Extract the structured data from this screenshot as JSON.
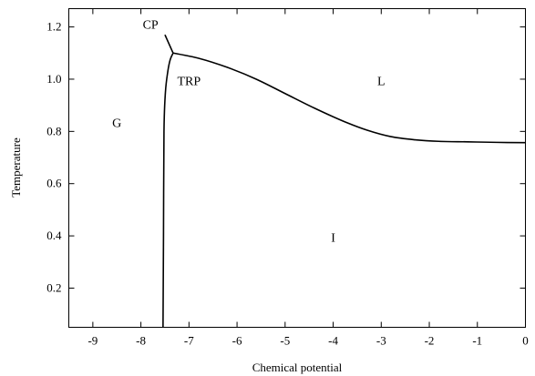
{
  "chart_data": {
    "type": "line",
    "xlabel": "Chemical potential",
    "ylabel": "Temperature",
    "xlim": [
      -9.5,
      0
    ],
    "ylim": [
      0.05,
      1.27
    ],
    "x_ticks": [
      -9,
      -8,
      -7,
      -6,
      -5,
      -4,
      -3,
      -2,
      -1,
      0
    ],
    "y_ticks": [
      0.2,
      0.4,
      0.6,
      0.8,
      1.0,
      1.2
    ],
    "y_tick_labels": [
      "0.2",
      "0.4",
      "0.6",
      "0.8",
      "1.0",
      "1.2"
    ],
    "grid": false,
    "series": [
      {
        "x": [
          -7.33,
          -6.8,
          -6.2,
          -5.6,
          -5.0,
          -4.4,
          -3.8,
          -3.3,
          -2.8,
          -2.3,
          -1.8,
          -1.2,
          -0.6,
          0.0
        ],
        "y": [
          1.1,
          1.08,
          1.045,
          1.0,
          0.945,
          0.89,
          0.84,
          0.805,
          0.78,
          0.768,
          0.762,
          0.76,
          0.758,
          0.757
        ]
      },
      {
        "x": [
          -7.54,
          -7.53,
          -7.52,
          -7.49,
          -7.44,
          -7.39,
          -7.33
        ],
        "y": [
          0.05,
          0.4,
          0.8,
          0.95,
          1.03,
          1.075,
          1.1
        ]
      },
      {
        "x": [
          -7.33,
          -7.5
        ],
        "y": [
          1.1,
          1.17
        ]
      }
    ],
    "annotations": [
      {
        "text": "CP",
        "x": -7.8,
        "y": 1.21
      },
      {
        "text": "TRP",
        "x": -7.0,
        "y": 0.995
      },
      {
        "text": "L",
        "x": -3.0,
        "y": 0.995
      },
      {
        "text": "G",
        "x": -8.5,
        "y": 0.835
      },
      {
        "text": "I",
        "x": -4.0,
        "y": 0.395
      }
    ]
  }
}
